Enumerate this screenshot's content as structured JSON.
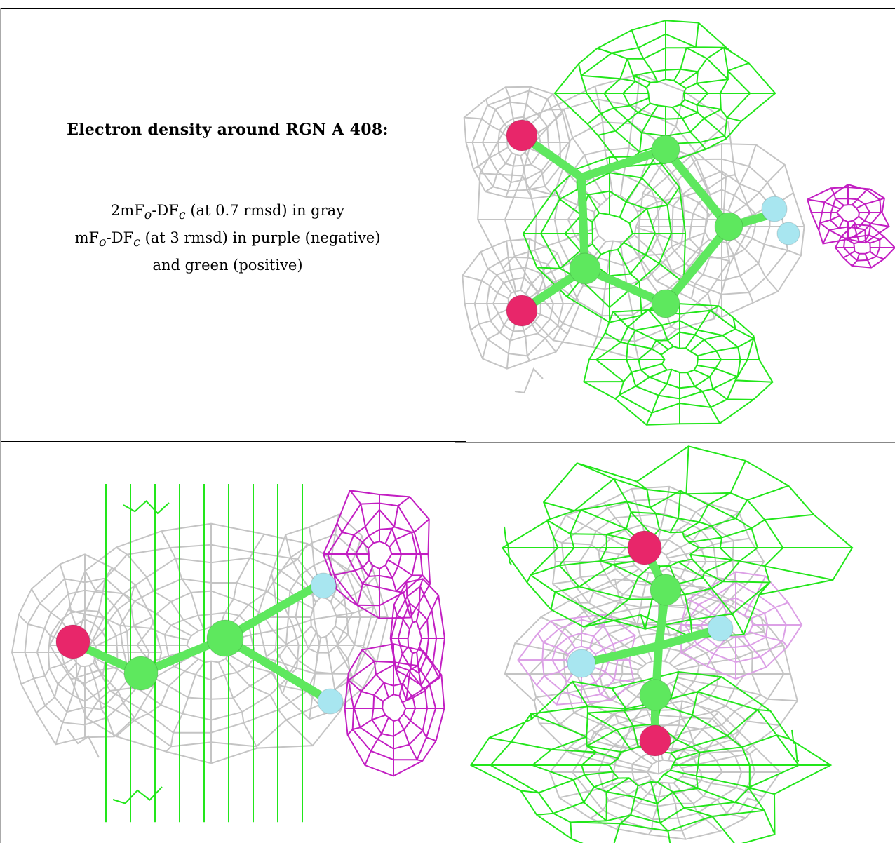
{
  "caption": {
    "title": "Electron density around RGN A 408:",
    "line1": {
      "prefix": "2mF",
      "sub1": "o",
      "mid": "-DF",
      "sub2": "c",
      "suffix": " (at 0.7 rmsd) in gray"
    },
    "line2": {
      "prefix": "mF",
      "sub1": "o",
      "mid": "-DF",
      "sub2": "c",
      "suffix": " (at 3 rmsd) in purple (negative)"
    },
    "line3": "and green (positive)"
  },
  "colors": {
    "gray_mesh": "#c4c4c4",
    "green_mesh": "#22e61a",
    "purple_mesh": "#c21ec2",
    "oxygen": "#e8266a",
    "nitrogen": "#a8e6f0",
    "carbon": "#5ee85e"
  },
  "views": [
    {
      "name": "view-top-right"
    },
    {
      "name": "view-bottom-left"
    },
    {
      "name": "view-bottom-right"
    }
  ]
}
